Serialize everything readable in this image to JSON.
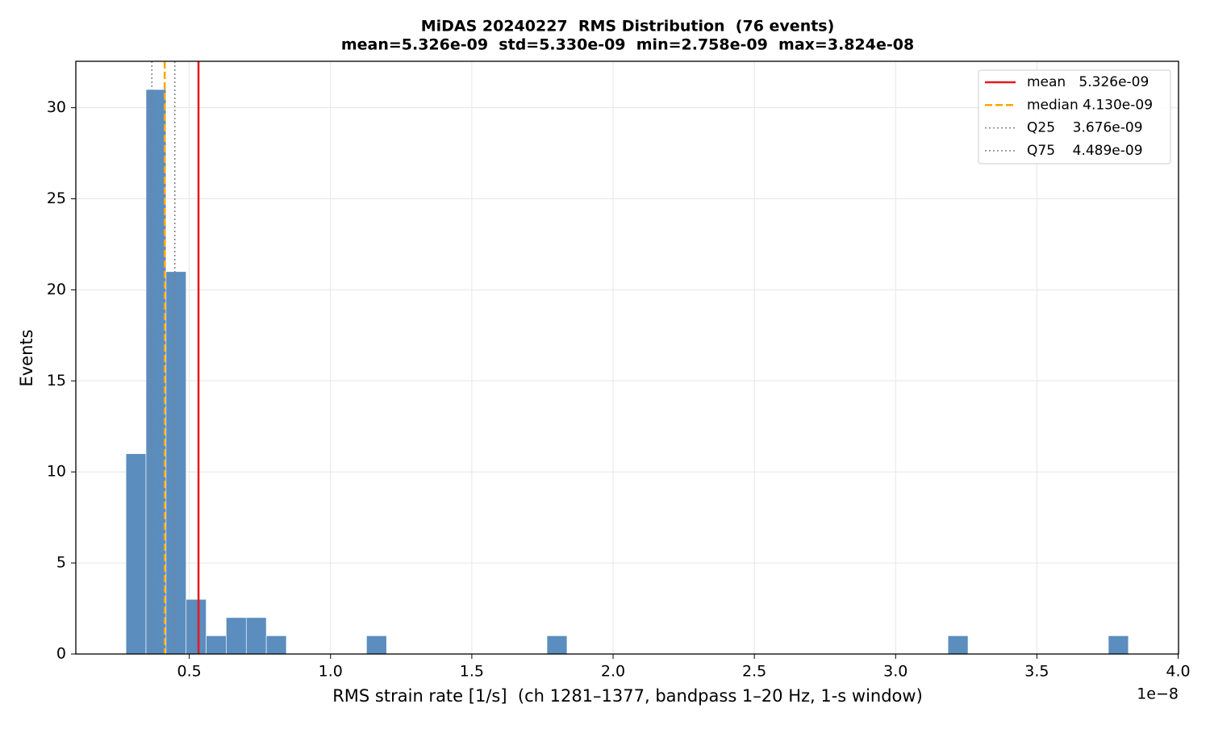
{
  "chart_data": {
    "type": "histogram",
    "title": "MiDAS 20240227  RMS Distribution  (76 events)",
    "subtitle": "mean=5.326e-09  std=5.330e-09  min=2.758e-09  max=3.824e-08",
    "x_label": "RMS strain rate [1/s]  (ch 1281–1377, bandpass 1–20 Hz, 1-s window)",
    "y_label": "Events",
    "x_offset_label": "1e−8",
    "color": "#5b8dbe",
    "bins": [
      0.2758,
      0.3468,
      0.4177,
      0.4887,
      0.5597,
      0.6306,
      0.7016,
      0.7725,
      0.8435,
      0.9145,
      0.9854,
      1.0564,
      1.1274,
      1.1983,
      1.2693,
      1.3403,
      1.4112,
      1.4822,
      1.5532,
      1.6241,
      1.6951,
      1.766,
      1.837,
      1.908,
      1.9789,
      2.0499,
      2.1209,
      2.1918,
      2.2628,
      2.3338,
      2.4047,
      2.4757,
      2.5466,
      2.6176,
      2.6886,
      2.7595,
      2.8305,
      2.9015,
      2.9724,
      3.0434,
      3.1144,
      3.1853,
      3.2563,
      3.3273,
      3.3982,
      3.4692,
      3.5402,
      3.6111,
      3.6821,
      3.753,
      3.824
    ],
    "values": [
      11,
      31,
      21,
      3,
      1,
      2,
      2,
      1,
      0,
      0,
      0,
      0,
      1,
      0,
      0,
      0,
      0,
      0,
      0,
      0,
      0,
      1,
      0,
      0,
      0,
      0,
      0,
      0,
      0,
      0,
      0,
      0,
      0,
      0,
      0,
      0,
      0,
      0,
      0,
      0,
      0,
      1,
      0,
      0,
      0,
      0,
      0,
      0,
      0,
      1
    ],
    "lines": [
      {
        "name": "mean   5.326e-09",
        "value": 0.5326,
        "color": "#e41a1c",
        "style": "solid"
      },
      {
        "name": "median 4.130e-09",
        "value": 0.413,
        "color": "#ffa500",
        "style": "dashed"
      },
      {
        "name": "Q25    3.676e-09",
        "value": 0.3676,
        "color": "#808080",
        "style": "dotted"
      },
      {
        "name": "Q75    4.489e-09",
        "value": 0.4489,
        "color": "#808080",
        "style": "dotted"
      }
    ],
    "xlim": [
      0.0984,
      4.0014
    ],
    "ylim": [
      0,
      32.55
    ],
    "xticks": [
      {
        "value": 0.5,
        "label": "0.5"
      },
      {
        "value": 1,
        "label": "1.0"
      },
      {
        "value": 1.5,
        "label": "1.5"
      },
      {
        "value": 2,
        "label": "2.0"
      },
      {
        "value": 2.5,
        "label": "2.5"
      },
      {
        "value": 3,
        "label": "3.0"
      },
      {
        "value": 3.5,
        "label": "3.5"
      },
      {
        "value": 4,
        "label": "4.0"
      }
    ],
    "yticks": [
      0,
      5,
      10,
      15,
      20,
      25,
      30
    ],
    "grid": true,
    "legend": "upper right"
  }
}
